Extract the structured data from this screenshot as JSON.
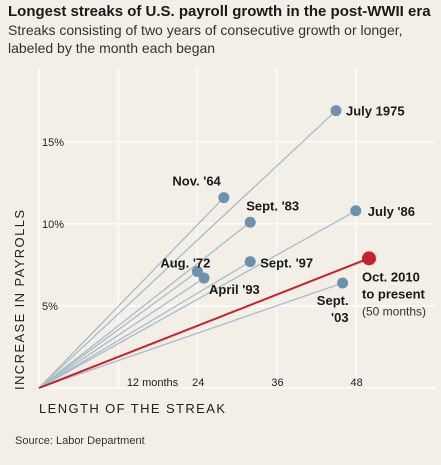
{
  "header": {
    "title": "Longest streaks of U.S. payroll growth in the post-WWII era",
    "subtitle": "Streaks consisting of two years of consecutive growth or longer, labeled by the month each began"
  },
  "source": "Source: Labor Department",
  "colors": {
    "background": "#f3efe6",
    "historical_line": "#a6bccb",
    "historical_point": "#6b93b0",
    "current": "#c8212a"
  },
  "chart_data": {
    "type": "scatter",
    "title": "Longest streaks of U.S. payroll growth in the post-WWII era",
    "xlabel": "LENGTH OF THE STREAK",
    "ylabel": "INCREASE IN PAYROLLS",
    "x_ticks": [
      {
        "value": 12,
        "label": "12 months"
      },
      {
        "value": 24,
        "label": "24"
      },
      {
        "value": 36,
        "label": "36"
      },
      {
        "value": 48,
        "label": "48"
      }
    ],
    "y_ticks": [
      {
        "value": 5,
        "label": "5%"
      },
      {
        "value": 10,
        "label": "10%"
      },
      {
        "value": 15,
        "label": "15%"
      }
    ],
    "xlim": [
      0,
      60
    ],
    "ylim": [
      0,
      19.5
    ],
    "grid": true,
    "origin": [
      0,
      0
    ],
    "series": [
      {
        "points": [
          {
            "label": "July 1975",
            "x": 45,
            "y": 16.9
          },
          {
            "label": "Nov. '64",
            "x": 28,
            "y": 11.6
          },
          {
            "label": "Sept. '83",
            "x": 32,
            "y": 10.1
          },
          {
            "label": "July '86",
            "x": 48,
            "y": 10.8
          },
          {
            "label": "Aug. '72",
            "x": 24,
            "y": 7.1
          },
          {
            "label": "April '93",
            "x": 25,
            "y": 6.7
          },
          {
            "label": "Sept. '97",
            "x": 32,
            "y": 7.7
          },
          {
            "label": "Sept. '03",
            "x": 46,
            "y": 6.4
          }
        ]
      },
      {
        "points": [
          {
            "label": "Oct. 2010 to present",
            "sublabel": "(50 months)",
            "x": 50,
            "y": 7.9
          }
        ]
      }
    ]
  }
}
